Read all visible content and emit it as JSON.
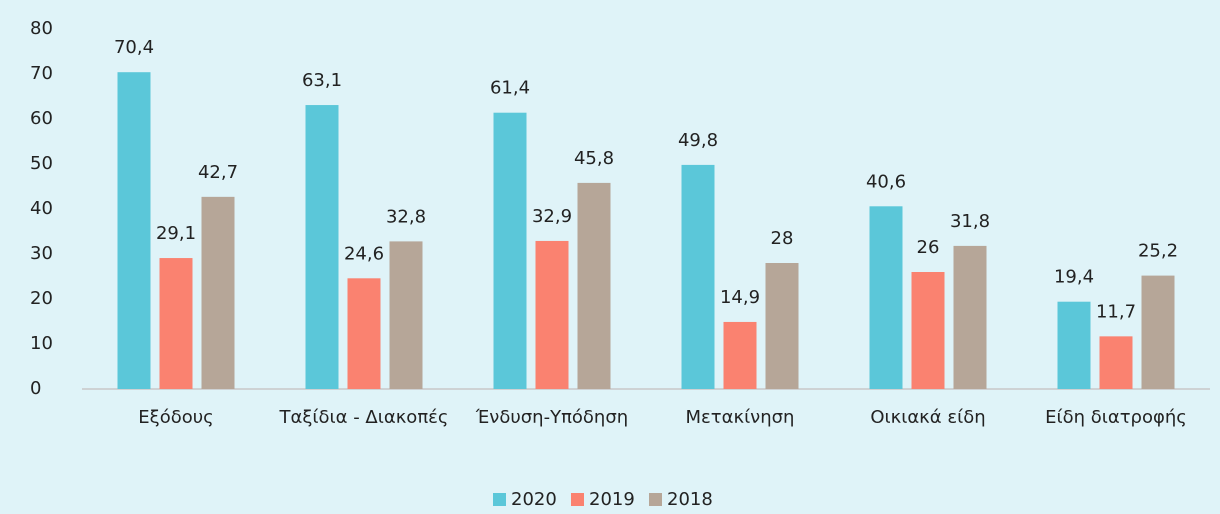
{
  "chart_data": {
    "type": "bar",
    "categories": [
      "Εξόδους",
      "Ταξίδια - Διακοπές",
      "Ένδυση-Υπόδηση",
      "Μετακίνηση",
      "Οικιακά είδη",
      "Είδη διατροφής"
    ],
    "series": [
      {
        "name": "2020",
        "color": "#5bc7d9",
        "values": [
          70.4,
          63.1,
          61.4,
          49.8,
          40.6,
          19.4
        ],
        "value_labels": [
          "70,4",
          "63,1",
          "61,4",
          "49,8",
          "40,6",
          "19,4"
        ]
      },
      {
        "name": "2019",
        "color": "#fa8270",
        "values": [
          29.1,
          24.6,
          32.9,
          14.9,
          26,
          11.7
        ],
        "value_labels": [
          "29,1",
          "24,6",
          "32,9",
          "14,9",
          "26",
          "11,7"
        ]
      },
      {
        "name": "2018",
        "color": "#b6a698",
        "values": [
          42.7,
          32.8,
          45.8,
          28,
          31.8,
          25.2
        ],
        "value_labels": [
          "42,7",
          "32,8",
          "45,8",
          "28",
          "31,8",
          "25,2"
        ]
      }
    ],
    "ylim": [
      0,
      80
    ],
    "yticks": [
      0,
      10,
      20,
      30,
      40,
      50,
      60,
      70,
      80
    ],
    "grid": false,
    "legend": "bottom"
  }
}
